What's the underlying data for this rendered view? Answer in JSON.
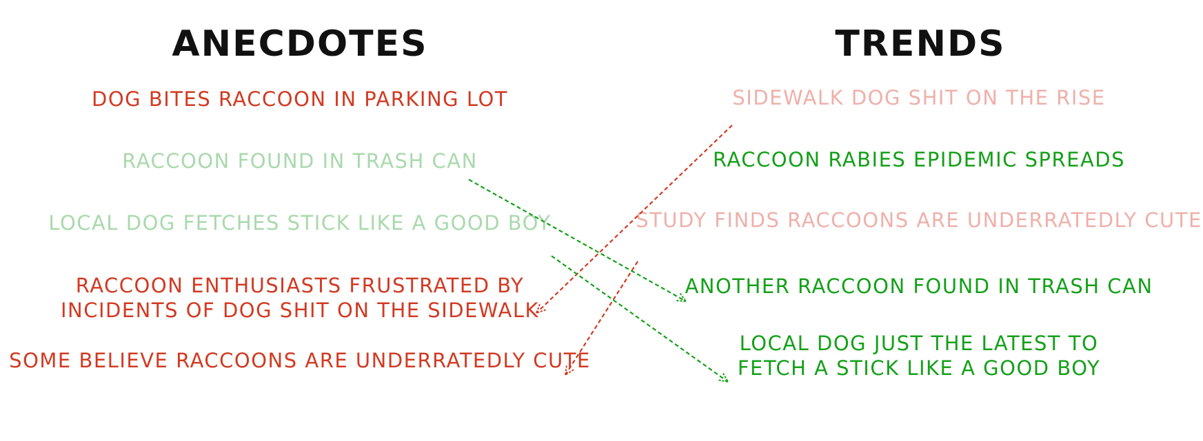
{
  "headings": {
    "left": "ANECDOTES",
    "right": "TRENDS"
  },
  "anecdotes": [
    {
      "text": "DOG BITES RACCOON IN PARKING LOT",
      "color": "#d13a22"
    },
    {
      "text": "RACCOON FOUND IN TRASH CAN",
      "color": "#a9d9ac"
    },
    {
      "text": "LOCAL DOG FETCHES STICK LIKE A GOOD BOY",
      "color": "#a9d9ac"
    },
    {
      "line1": "RACCOON ENTHUSIASTS FRUSTRATED BY",
      "line2": "INCIDENTS OF DOG SHIT ON THE SIDEWALK",
      "color": "#d13a22"
    },
    {
      "text": "SOME BELIEVE RACCOONS ARE UNDERRATEDLY CUTE",
      "color": "#d13a22"
    }
  ],
  "trends": [
    {
      "text": "SIDEWALK DOG SHIT ON THE RISE",
      "color": "#efb0aa"
    },
    {
      "text": "RACCOON RABIES EPIDEMIC SPREADS",
      "color": "#14a019"
    },
    {
      "text": "STUDY FINDS RACCOONS ARE UNDERRATEDLY CUTE",
      "color": "#efb0aa"
    },
    {
      "text": "ANOTHER RACCOON FOUND IN TRASH CAN",
      "color": "#14a019"
    },
    {
      "line1": "LOCAL DOG JUST THE LATEST TO",
      "line2": "FETCH A STICK LIKE A GOOD BOY",
      "color": "#14a019"
    }
  ],
  "arrows": [
    {
      "from": "trend-sidewalk-dog-shit",
      "to": "anecdote-raccoon-enthusiasts",
      "direction": "trend-to-anecdote",
      "color": "#d13a22"
    },
    {
      "from": "trend-study-raccoons-cute",
      "to": "anecdote-some-believe-cute",
      "direction": "trend-to-anecdote",
      "color": "#d13a22"
    },
    {
      "from": "anecdote-raccoon-trash-can",
      "to": "trend-another-raccoon-trash",
      "direction": "anecdote-to-trend",
      "color": "#14a019"
    },
    {
      "from": "anecdote-local-dog-stick",
      "to": "trend-local-dog-latest",
      "direction": "anecdote-to-trend",
      "color": "#14a019"
    }
  ]
}
